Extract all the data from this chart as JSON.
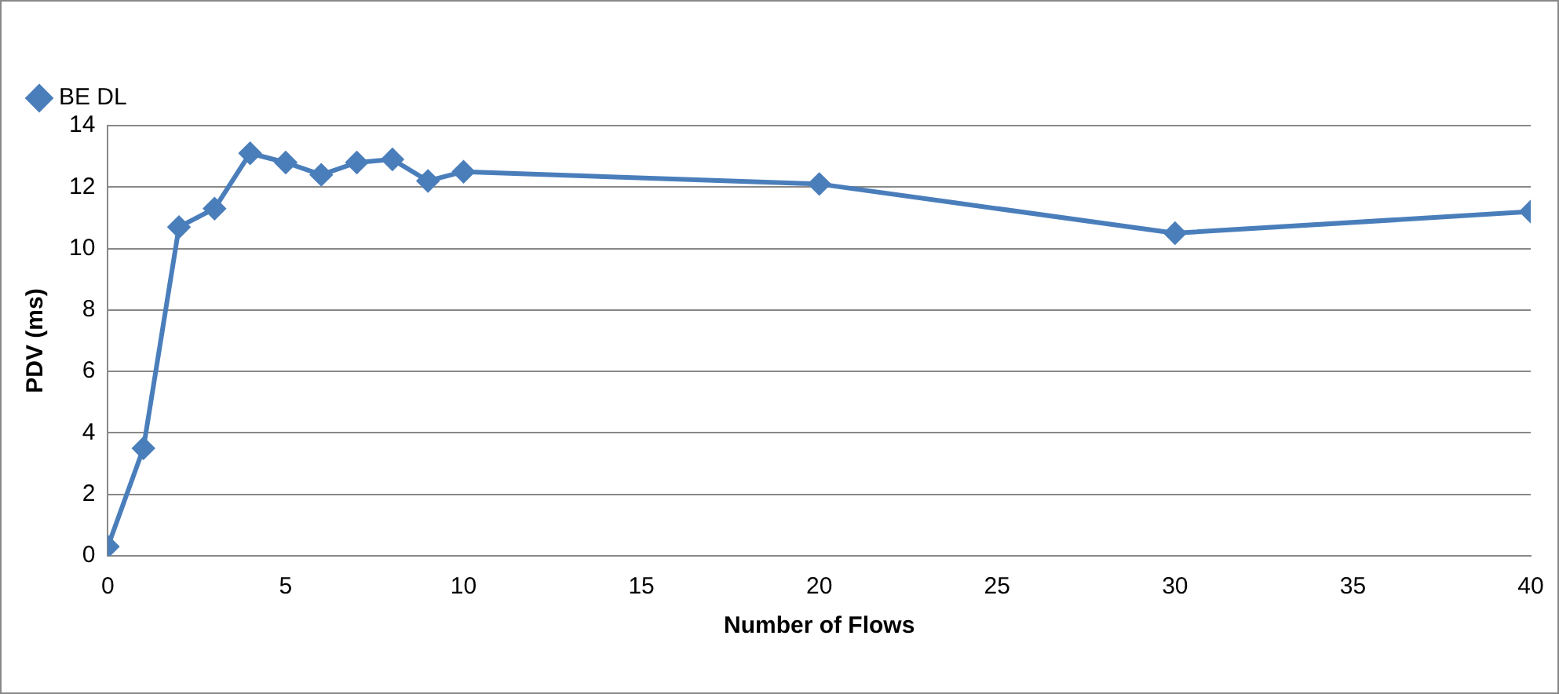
{
  "chart_data": {
    "type": "line",
    "xlabel": "Number of Flows",
    "ylabel": "PDV (ms)",
    "x": [
      0,
      1,
      2,
      3,
      4,
      5,
      6,
      7,
      8,
      9,
      10,
      20,
      30,
      40
    ],
    "series": [
      {
        "name": "BE DL",
        "color": "#4a7ebb",
        "values": [
          0.3,
          3.5,
          10.7,
          11.3,
          13.1,
          12.8,
          12.4,
          12.8,
          12.9,
          12.2,
          12.5,
          12.1,
          10.5,
          11.2
        ]
      }
    ],
    "xlim": [
      0,
      40
    ],
    "xticks": [
      0,
      5,
      10,
      15,
      20,
      25,
      30,
      35,
      40
    ],
    "ylim": [
      0,
      14
    ],
    "yticks": [
      0,
      2,
      4,
      6,
      8,
      10,
      12,
      14
    ],
    "grid": "y",
    "legend": "top left",
    "marker": "diamond",
    "line_style": "solid"
  }
}
